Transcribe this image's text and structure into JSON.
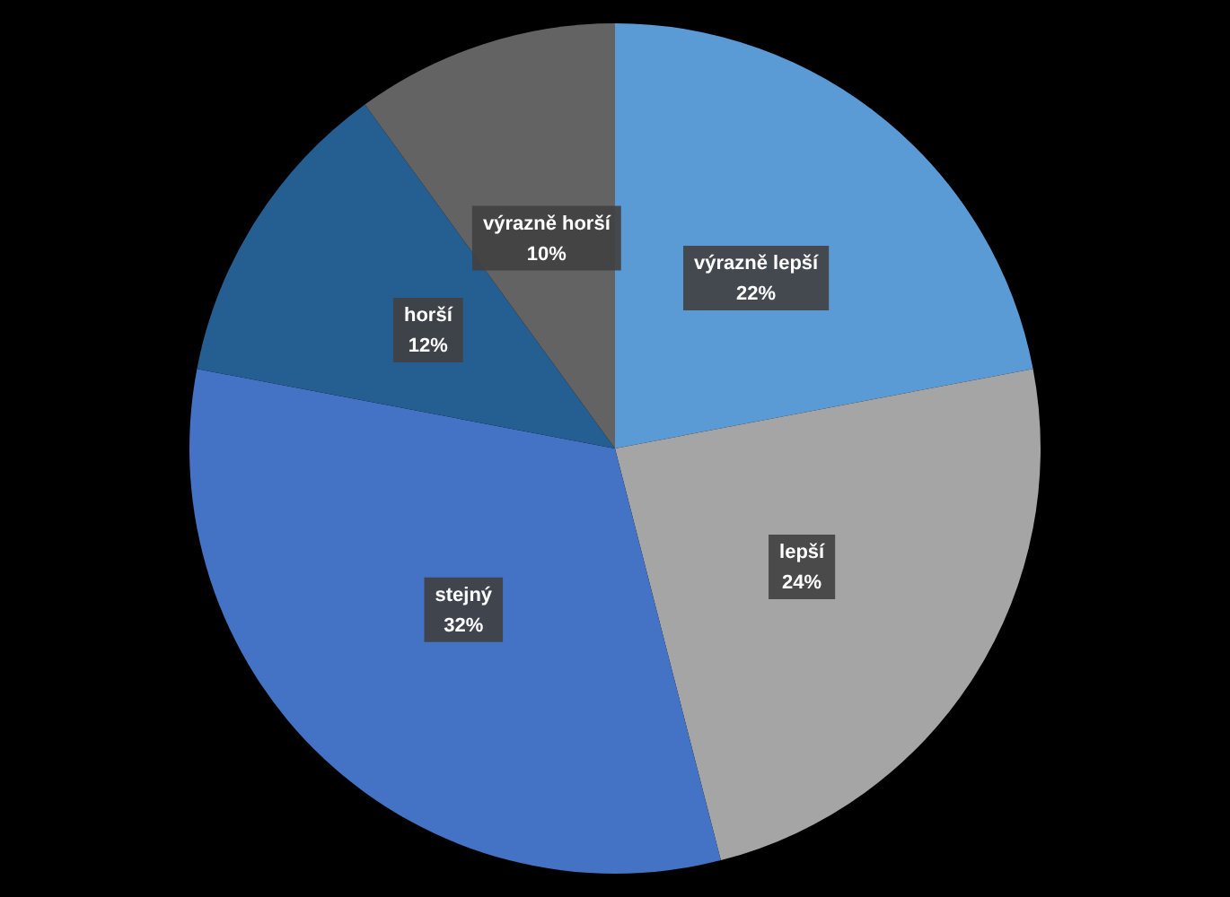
{
  "chart_data": {
    "type": "pie",
    "categories": [
      "výrazně lepší",
      "lepší",
      "stejný",
      "horší",
      "výrazně horší"
    ],
    "values": [
      22,
      24,
      32,
      12,
      10
    ],
    "value_labels": [
      "22%",
      "24%",
      "32%",
      "12%",
      "10%"
    ],
    "colors": [
      "#5b9bd5",
      "#a5a5a5",
      "#4472c4",
      "#255e91",
      "#636363"
    ],
    "legend": false
  }
}
